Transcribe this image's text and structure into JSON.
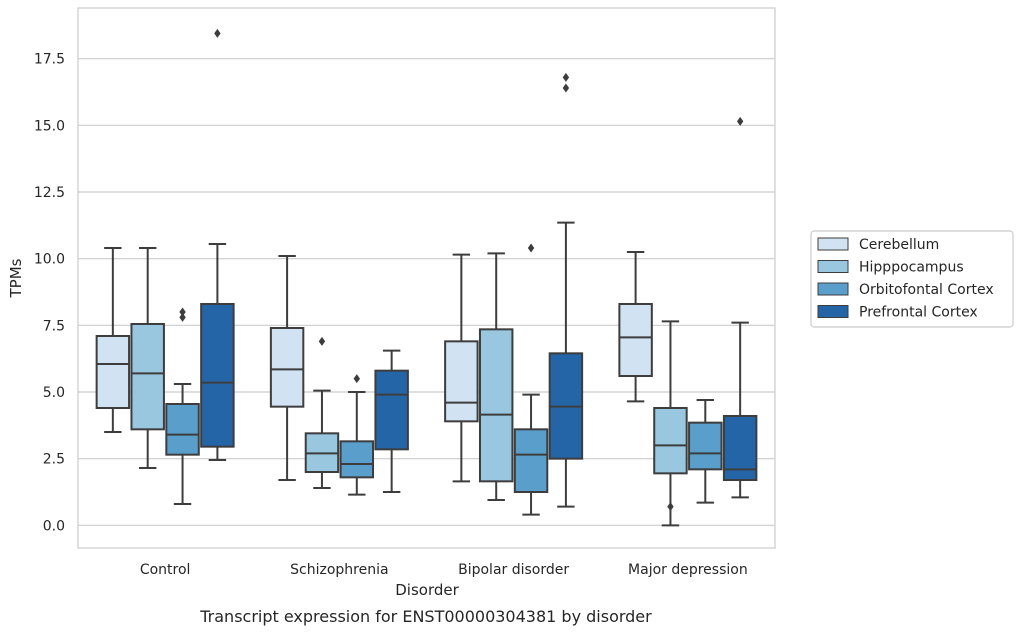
{
  "chart_data": {
    "type": "box",
    "xlabel": "Disorder",
    "ylabel": "TPMs",
    "caption": "Transcript expression for ENST00000304381 by disorder",
    "ylim": [
      -0.85,
      19.4
    ],
    "y_ticks": [
      "0.0",
      "2.5",
      "5.0",
      "7.5",
      "10.0",
      "12.5",
      "15.0",
      "17.5"
    ],
    "grid": "horizontal",
    "legend_position": "right-center",
    "categories": [
      "Control",
      "Schizophrenia",
      "Bipolar disorder",
      "Major depression"
    ],
    "series": [
      {
        "name": "Cerebellum",
        "color": "#d1e2f2",
        "boxes": [
          {
            "whisker_low": 3.5,
            "q1": 4.4,
            "median": 6.05,
            "q3": 7.1,
            "whisker_high": 10.4,
            "outliers": []
          },
          {
            "whisker_low": 1.7,
            "q1": 4.45,
            "median": 5.85,
            "q3": 7.4,
            "whisker_high": 10.1,
            "outliers": []
          },
          {
            "whisker_low": 1.65,
            "q1": 3.9,
            "median": 4.6,
            "q3": 6.9,
            "whisker_high": 10.15,
            "outliers": []
          },
          {
            "whisker_low": 4.65,
            "q1": 5.6,
            "median": 7.05,
            "q3": 8.3,
            "whisker_high": 10.25,
            "outliers": []
          }
        ]
      },
      {
        "name": "Hipppocampus",
        "color": "#9ac7e0",
        "boxes": [
          {
            "whisker_low": 2.15,
            "q1": 3.6,
            "median": 5.7,
            "q3": 7.55,
            "whisker_high": 10.4,
            "outliers": []
          },
          {
            "whisker_low": 1.4,
            "q1": 2.0,
            "median": 2.7,
            "q3": 3.45,
            "whisker_high": 5.05,
            "outliers": [
              6.9
            ]
          },
          {
            "whisker_low": 0.95,
            "q1": 1.65,
            "median": 4.15,
            "q3": 7.35,
            "whisker_high": 10.2,
            "outliers": []
          },
          {
            "whisker_low": 0.0,
            "q1": 1.95,
            "median": 3.0,
            "q3": 4.4,
            "whisker_high": 7.65,
            "outliers": [
              0.7
            ]
          }
        ]
      },
      {
        "name": "Orbitofontal Cortex",
        "color": "#5a9fcb",
        "boxes": [
          {
            "whisker_low": 0.8,
            "q1": 2.65,
            "median": 3.4,
            "q3": 4.55,
            "whisker_high": 5.3,
            "outliers": [
              7.8,
              8.0
            ]
          },
          {
            "whisker_low": 1.15,
            "q1": 1.8,
            "median": 2.3,
            "q3": 3.15,
            "whisker_high": 5.0,
            "outliers": [
              5.5
            ]
          },
          {
            "whisker_low": 0.4,
            "q1": 1.25,
            "median": 2.65,
            "q3": 3.6,
            "whisker_high": 4.9,
            "outliers": [
              10.4
            ]
          },
          {
            "whisker_low": 0.85,
            "q1": 2.1,
            "median": 2.7,
            "q3": 3.85,
            "whisker_high": 4.7,
            "outliers": []
          }
        ]
      },
      {
        "name": "Prefrontal Cortex",
        "color": "#2465a8",
        "boxes": [
          {
            "whisker_low": 2.45,
            "q1": 2.95,
            "median": 5.35,
            "q3": 8.3,
            "whisker_high": 10.55,
            "outliers": [
              18.45
            ]
          },
          {
            "whisker_low": 1.25,
            "q1": 2.85,
            "median": 4.9,
            "q3": 5.8,
            "whisker_high": 6.55,
            "outliers": []
          },
          {
            "whisker_low": 0.7,
            "q1": 2.5,
            "median": 4.45,
            "q3": 6.45,
            "whisker_high": 11.35,
            "outliers": [
              16.4,
              16.8
            ]
          },
          {
            "whisker_low": 1.05,
            "q1": 1.7,
            "median": 2.1,
            "q3": 4.1,
            "whisker_high": 7.6,
            "outliers": [
              15.15
            ]
          }
        ]
      }
    ]
  }
}
